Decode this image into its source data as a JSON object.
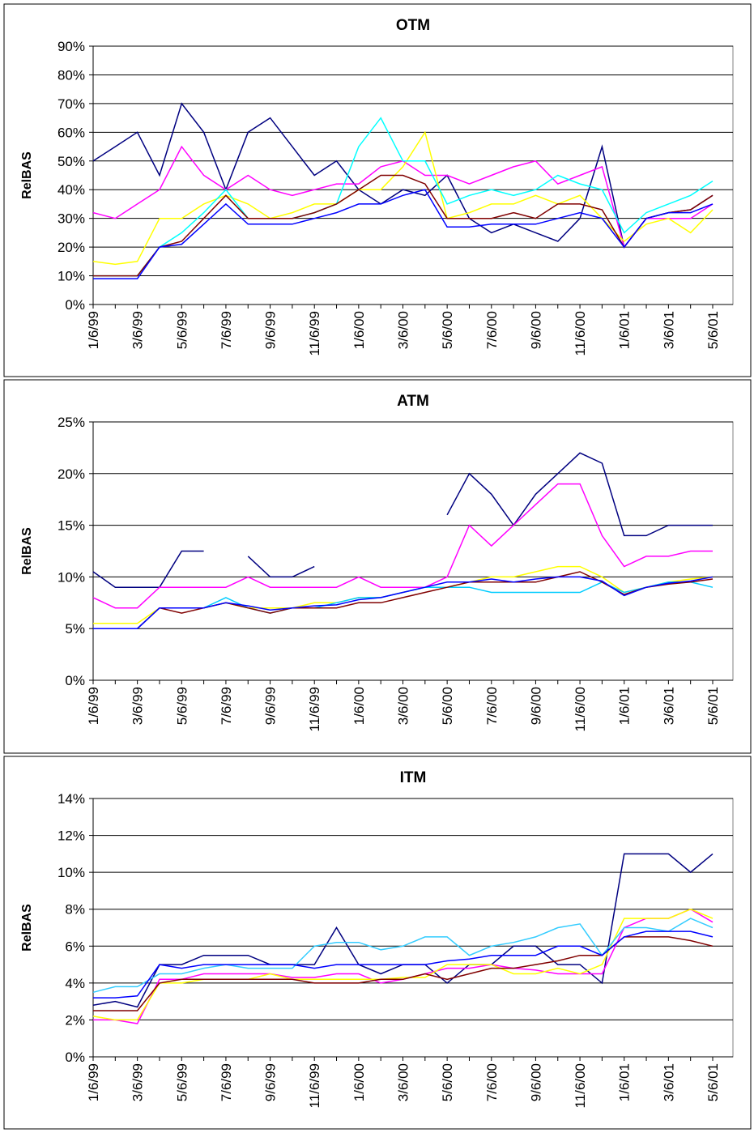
{
  "chart_data": [
    {
      "type": "line",
      "title": "OTM",
      "y_label": "RelBAS",
      "categories": [
        "1/6/99",
        null,
        "3/6/99",
        null,
        "5/6/99",
        null,
        "7/6/99",
        null,
        "9/6/99",
        null,
        "11/6/99",
        null,
        "1/6/00",
        null,
        "3/6/00",
        null,
        "5/6/00",
        null,
        "7/6/00",
        null,
        "9/6/00",
        null,
        "11/6/00",
        null,
        "1/6/01",
        null,
        "3/6/01",
        null,
        "5/6/01"
      ],
      "ylim": [
        0,
        90
      ],
      "yticks": [
        {
          "value": 0,
          "label": "0%"
        },
        {
          "value": 10,
          "label": "10%"
        },
        {
          "value": 20,
          "label": "20%"
        },
        {
          "value": 30,
          "label": "30%"
        },
        {
          "value": 40,
          "label": "40%"
        },
        {
          "value": 50,
          "label": "50%"
        },
        {
          "value": 60,
          "label": "60%"
        },
        {
          "value": 70,
          "label": "70%"
        },
        {
          "value": 80,
          "label": "80%"
        },
        {
          "value": 90,
          "label": "90%"
        }
      ],
      "grid": true,
      "series": [
        {
          "color": "#000080",
          "values": [
            50,
            55,
            60,
            45,
            70,
            60,
            40,
            60,
            65,
            55,
            45,
            50,
            40,
            35,
            40,
            38,
            45,
            30,
            25,
            28,
            25,
            22,
            30,
            55,
            20,
            30,
            32,
            33,
            38
          ]
        },
        {
          "color": "#ff00ff",
          "values": [
            32,
            30,
            35,
            40,
            55,
            45,
            40,
            45,
            40,
            38,
            40,
            42,
            42,
            48,
            50,
            45,
            45,
            42,
            45,
            48,
            50,
            42,
            45,
            48,
            20,
            30,
            30,
            30,
            35
          ]
        },
        {
          "color": "#ffff00",
          "values": [
            15,
            14,
            15,
            30,
            30,
            35,
            38,
            35,
            30,
            32,
            35,
            35,
            40,
            40,
            48,
            60,
            30,
            32,
            35,
            35,
            38,
            35,
            38,
            30,
            22,
            28,
            30,
            25,
            33
          ]
        },
        {
          "color": "#00ffff",
          "values": [
            10,
            10,
            10,
            20,
            25,
            32,
            40,
            30,
            30,
            30,
            32,
            35,
            55,
            65,
            50,
            50,
            35,
            38,
            40,
            38,
            40,
            45,
            42,
            40,
            25,
            32,
            35,
            38,
            43
          ]
        },
        {
          "color": "#800000",
          "values": [
            10,
            10,
            10,
            20,
            22,
            30,
            38,
            30,
            30,
            30,
            32,
            35,
            40,
            45,
            45,
            42,
            30,
            30,
            30,
            32,
            30,
            35,
            35,
            33,
            20,
            30,
            32,
            33,
            38
          ]
        },
        {
          "color": "#0000ff",
          "values": [
            9,
            9,
            9,
            20,
            21,
            28,
            35,
            28,
            28,
            28,
            30,
            32,
            35,
            35,
            38,
            40,
            27,
            27,
            28,
            28,
            28,
            30,
            32,
            30,
            20,
            30,
            32,
            32,
            35
          ]
        }
      ]
    },
    {
      "type": "line",
      "title": "ATM",
      "y_label": "RelBAS",
      "categories": [
        "1/6/99",
        null,
        "3/6/99",
        null,
        "5/6/99",
        null,
        "7/6/99",
        null,
        "9/6/99",
        null,
        "11/6/99",
        null,
        "1/6/00",
        null,
        "3/6/00",
        null,
        "5/6/00",
        null,
        "7/6/00",
        null,
        "9/6/00",
        null,
        "11/6/00",
        null,
        "1/6/01",
        null,
        "3/6/01",
        null,
        "5/6/01"
      ],
      "ylim": [
        0,
        25
      ],
      "yticks": [
        {
          "value": 0,
          "label": "0%"
        },
        {
          "value": 5,
          "label": "5%"
        },
        {
          "value": 10,
          "label": "10%"
        },
        {
          "value": 15,
          "label": "15%"
        },
        {
          "value": 20,
          "label": "20%"
        },
        {
          "value": 25,
          "label": "25%"
        }
      ],
      "grid": true,
      "series": [
        {
          "color": "#000080",
          "values": [
            10.5,
            9,
            9,
            9,
            12.5,
            12.5,
            null,
            12,
            10,
            10,
            11,
            null,
            null,
            null,
            null,
            null,
            16,
            20,
            18,
            15,
            18,
            20,
            22,
            21,
            14,
            14,
            15,
            15,
            15
          ]
        },
        {
          "color": "#ff00ff",
          "values": [
            8,
            7,
            7,
            9,
            9,
            9,
            9,
            10,
            9,
            9,
            9,
            9,
            10,
            9,
            9,
            9,
            10,
            15,
            13,
            15,
            17,
            19,
            19,
            14,
            11,
            12,
            12,
            12.5,
            12.5
          ]
        },
        {
          "color": "#ffff00",
          "values": [
            5.5,
            5.5,
            5.5,
            7,
            7,
            7,
            7.5,
            7,
            7,
            7,
            7.5,
            7.5,
            8,
            8,
            8.5,
            9,
            9,
            9.5,
            10,
            10,
            10.5,
            11,
            11,
            10,
            8.5,
            9,
            9.5,
            9.8,
            10
          ]
        },
        {
          "color": "#00ccff",
          "values": [
            5,
            5,
            5,
            7,
            7,
            7,
            8,
            7,
            6.5,
            7,
            7,
            7.5,
            8,
            8,
            8.5,
            9,
            9,
            9,
            8.5,
            8.5,
            8.5,
            8.5,
            8.5,
            9.5,
            8.5,
            9,
            9.5,
            9.5,
            9
          ]
        },
        {
          "color": "#800000",
          "values": [
            5,
            5,
            5,
            7,
            6.5,
            7,
            7.5,
            7,
            6.5,
            7,
            7,
            7,
            7.5,
            7.5,
            8,
            8.5,
            9,
            9.5,
            9.5,
            9.5,
            9.5,
            10,
            10.5,
            9.5,
            8.3,
            9,
            9.3,
            9.5,
            9.8
          ]
        },
        {
          "color": "#0000ff",
          "values": [
            5,
            5,
            5,
            7,
            7,
            7,
            7.5,
            7.2,
            6.8,
            7,
            7.2,
            7.3,
            7.8,
            8,
            8.5,
            9,
            9.5,
            9.5,
            9.8,
            9.5,
            9.8,
            10,
            10,
            9.6,
            8.2,
            9,
            9.4,
            9.6,
            10
          ]
        }
      ]
    },
    {
      "type": "line",
      "title": "ITM",
      "y_label": "RelBAS",
      "categories": [
        "1/6/99",
        null,
        "3/6/99",
        null,
        "5/6/99",
        null,
        "7/6/99",
        null,
        "9/6/99",
        null,
        "11/6/99",
        null,
        "1/6/00",
        null,
        "3/6/00",
        null,
        "5/6/00",
        null,
        "7/6/00",
        null,
        "9/6/00",
        null,
        "11/6/00",
        null,
        "1/6/01",
        null,
        "3/6/01",
        null,
        "5/6/01"
      ],
      "ylim": [
        0,
        14
      ],
      "yticks": [
        {
          "value": 0,
          "label": "0%"
        },
        {
          "value": 2,
          "label": "2%"
        },
        {
          "value": 4,
          "label": "4%"
        },
        {
          "value": 6,
          "label": "6%"
        },
        {
          "value": 8,
          "label": "8%"
        },
        {
          "value": 10,
          "label": "10%"
        },
        {
          "value": 12,
          "label": "12%"
        },
        {
          "value": 14,
          "label": "14%"
        }
      ],
      "grid": true,
      "series": [
        {
          "color": "#000080",
          "values": [
            2.8,
            3,
            2.7,
            5,
            5,
            5.5,
            5.5,
            5.5,
            5,
            5,
            5,
            7,
            5,
            4.5,
            5,
            5,
            4,
            5,
            5,
            6,
            6,
            5,
            5,
            4,
            11,
            11,
            11,
            10,
            11
          ]
        },
        {
          "color": "#ff00ff",
          "values": [
            2,
            2,
            1.8,
            4.2,
            4.2,
            4.5,
            4.5,
            4.5,
            4.5,
            4.3,
            4.3,
            4.5,
            4.5,
            4,
            4.2,
            4.5,
            4.8,
            4.8,
            5,
            4.8,
            4.7,
            4.5,
            4.5,
            4.5,
            7,
            7.5,
            7.5,
            8,
            7.3
          ]
        },
        {
          "color": "#ffff00",
          "values": [
            2.2,
            2,
            2,
            4,
            4,
            4.2,
            4.2,
            4.2,
            4.5,
            4.2,
            4.2,
            4.2,
            4.2,
            4.2,
            4.3,
            4.3,
            5,
            5,
            5,
            4.5,
            4.5,
            4.8,
            4.5,
            5,
            7.5,
            7.5,
            7.5,
            8,
            7.5
          ]
        },
        {
          "color": "#33ccff",
          "values": [
            3.5,
            3.8,
            3.8,
            4.5,
            4.5,
            4.8,
            5,
            4.8,
            4.8,
            4.8,
            6,
            6.2,
            6.2,
            5.8,
            6,
            6.5,
            6.5,
            5.5,
            6,
            6.2,
            6.5,
            7,
            7.2,
            5.5,
            7,
            7,
            6.8,
            7.5,
            7
          ]
        },
        {
          "color": "#800000",
          "values": [
            2.5,
            2.5,
            2.5,
            4,
            4.2,
            4.2,
            4.2,
            4.2,
            4.2,
            4.2,
            4,
            4,
            4,
            4.2,
            4.2,
            4.5,
            4.2,
            4.5,
            4.8,
            4.8,
            5,
            5.2,
            5.5,
            5.5,
            6.5,
            6.5,
            6.5,
            6.3,
            6
          ]
        },
        {
          "color": "#0000ff",
          "values": [
            3.2,
            3.2,
            3.3,
            5,
            4.8,
            5,
            5,
            5,
            5,
            5,
            4.8,
            5,
            5,
            5,
            5,
            5,
            5.2,
            5.3,
            5.5,
            5.5,
            5.5,
            6,
            6,
            5.5,
            6.5,
            6.8,
            6.8,
            6.8,
            6.5
          ]
        }
      ]
    }
  ]
}
